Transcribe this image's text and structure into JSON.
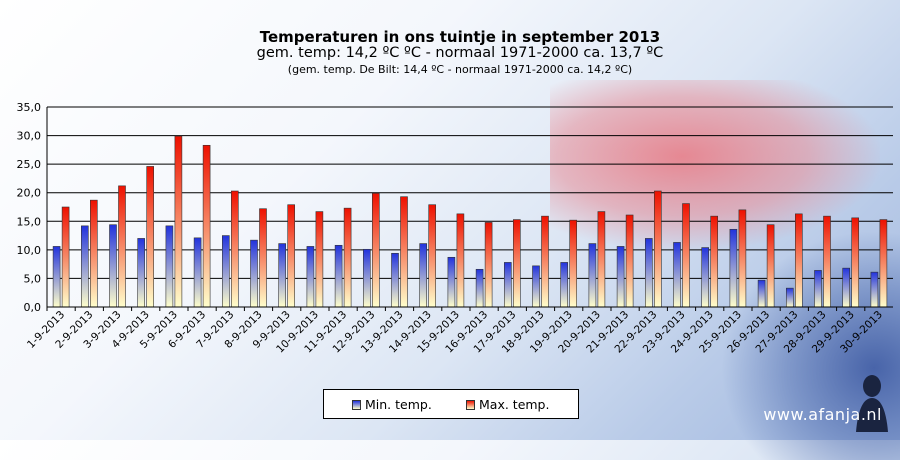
{
  "chart_data": {
    "type": "bar",
    "title": "Temperaturen in ons tuintje in september 2013",
    "subtitle": "gem. temp: 14,2 ºC ºC - normaal 1971-2000 ca. 13,7 ºC",
    "subtitle2": "(gem. temp. De Bilt: 14,4 ºC - normaal 1971-2000 ca. 14,2 ºC)",
    "xlabel": "",
    "ylabel": "",
    "ylim": [
      0,
      35
    ],
    "yticks": [
      "0,0",
      "5,0",
      "10,0",
      "15,0",
      "20,0",
      "25,0",
      "30,0",
      "35,0"
    ],
    "grid": true,
    "legend_position": "bottom",
    "categories": [
      "1-9-2013",
      "2-9-2013",
      "3-9-2013",
      "4-9-2013",
      "5-9-2013",
      "6-9-2013",
      "7-9-2013",
      "8-9-2013",
      "9-9-2013",
      "10-9-2013",
      "11-9-2013",
      "12-9-2013",
      "13-9-2013",
      "14-9-2013",
      "15-9-2013",
      "16-9-2013",
      "17-9-2013",
      "18-9-2013",
      "19-9-2013",
      "20-9-2013",
      "21-9-2013",
      "22-9-2013",
      "23-9-2013",
      "24-9-2013",
      "25-9-2013",
      "26-9-2013",
      "27-9-2013",
      "28-9-2013",
      "29-9-2013",
      "30-9-2013"
    ],
    "series": [
      {
        "name": "Min. temp.",
        "color": "#3344dd",
        "values": [
          10.6,
          14.2,
          14.4,
          12.0,
          14.2,
          12.1,
          12.5,
          11.7,
          11.1,
          10.6,
          10.8,
          10.1,
          9.4,
          11.1,
          8.7,
          6.6,
          7.8,
          7.2,
          7.8,
          11.1,
          10.6,
          12.0,
          11.3,
          10.4,
          13.6,
          4.7,
          3.3,
          6.4,
          6.8,
          6.1
        ]
      },
      {
        "name": "Max. temp.",
        "color": "#ee2211",
        "values": [
          17.5,
          18.7,
          21.2,
          24.6,
          29.9,
          28.3,
          20.3,
          17.2,
          17.9,
          16.7,
          17.3,
          19.9,
          19.3,
          17.9,
          16.3,
          14.8,
          15.3,
          15.9,
          15.2,
          16.7,
          16.1,
          20.3,
          18.1,
          15.9,
          17.0,
          14.4,
          16.3,
          15.9,
          15.6,
          15.3
        ]
      }
    ]
  },
  "watermark": "www.afanja.nl"
}
